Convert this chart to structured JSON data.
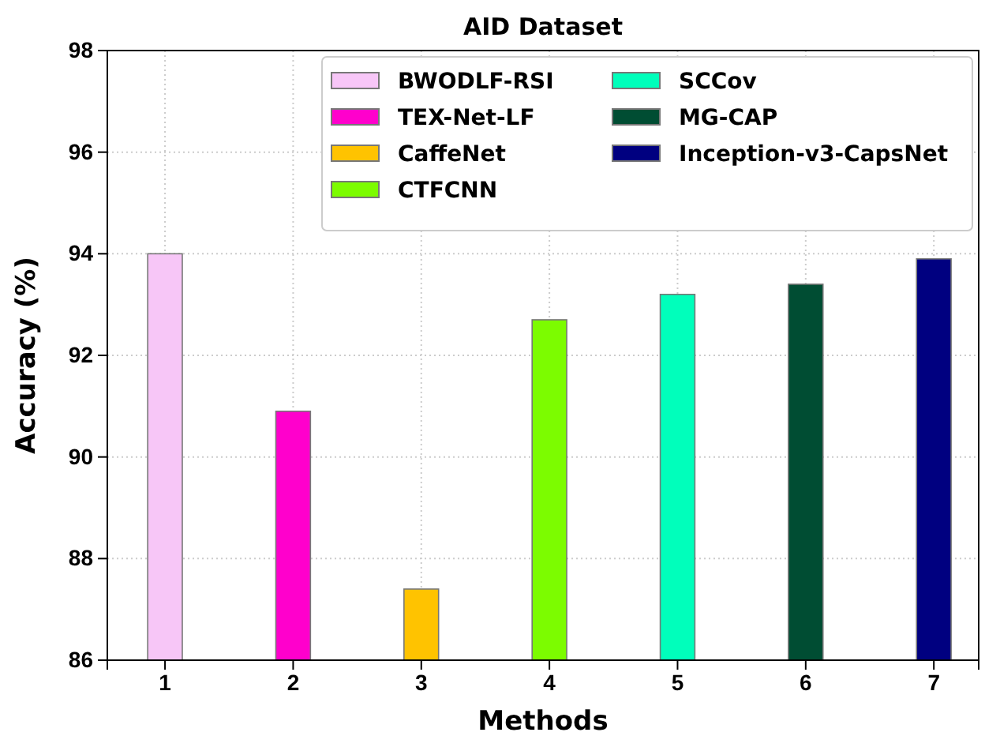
{
  "chart_data": {
    "type": "bar",
    "title": "AID Dataset",
    "xlabel": "Methods",
    "ylabel": "Accuracy (%)",
    "xlim": [
      0.55,
      7.35
    ],
    "xticks": [
      1,
      2,
      3,
      4,
      5,
      6,
      7
    ],
    "ylim": [
      86,
      98
    ],
    "yticks": [
      86,
      88,
      90,
      92,
      94,
      96,
      98
    ],
    "grid": true,
    "legend": "top right",
    "series": [
      {
        "name": "BWODLF-RSI",
        "color": "#f7c6f7",
        "x": [
          1
        ],
        "values": [
          94.0
        ]
      },
      {
        "name": "TEX-Net-LF",
        "color": "#ff00cc",
        "x": [
          2
        ],
        "values": [
          90.9
        ]
      },
      {
        "name": "CaffeNet",
        "color": "#ffc300",
        "x": [
          3
        ],
        "values": [
          87.4
        ]
      },
      {
        "name": "CTFCNN",
        "color": "#7cfc00",
        "x": [
          4
        ],
        "values": [
          92.7
        ]
      },
      {
        "name": "SCCov",
        "color": "#00ffbb",
        "x": [
          5
        ],
        "values": [
          93.2
        ]
      },
      {
        "name": "MG-CAP",
        "color": "#004d33",
        "x": [
          6
        ],
        "values": [
          93.4
        ]
      },
      {
        "name": "Inception-v3-CapsNet",
        "color": "#000080",
        "x": [
          7
        ],
        "values": [
          93.9
        ]
      }
    ]
  }
}
